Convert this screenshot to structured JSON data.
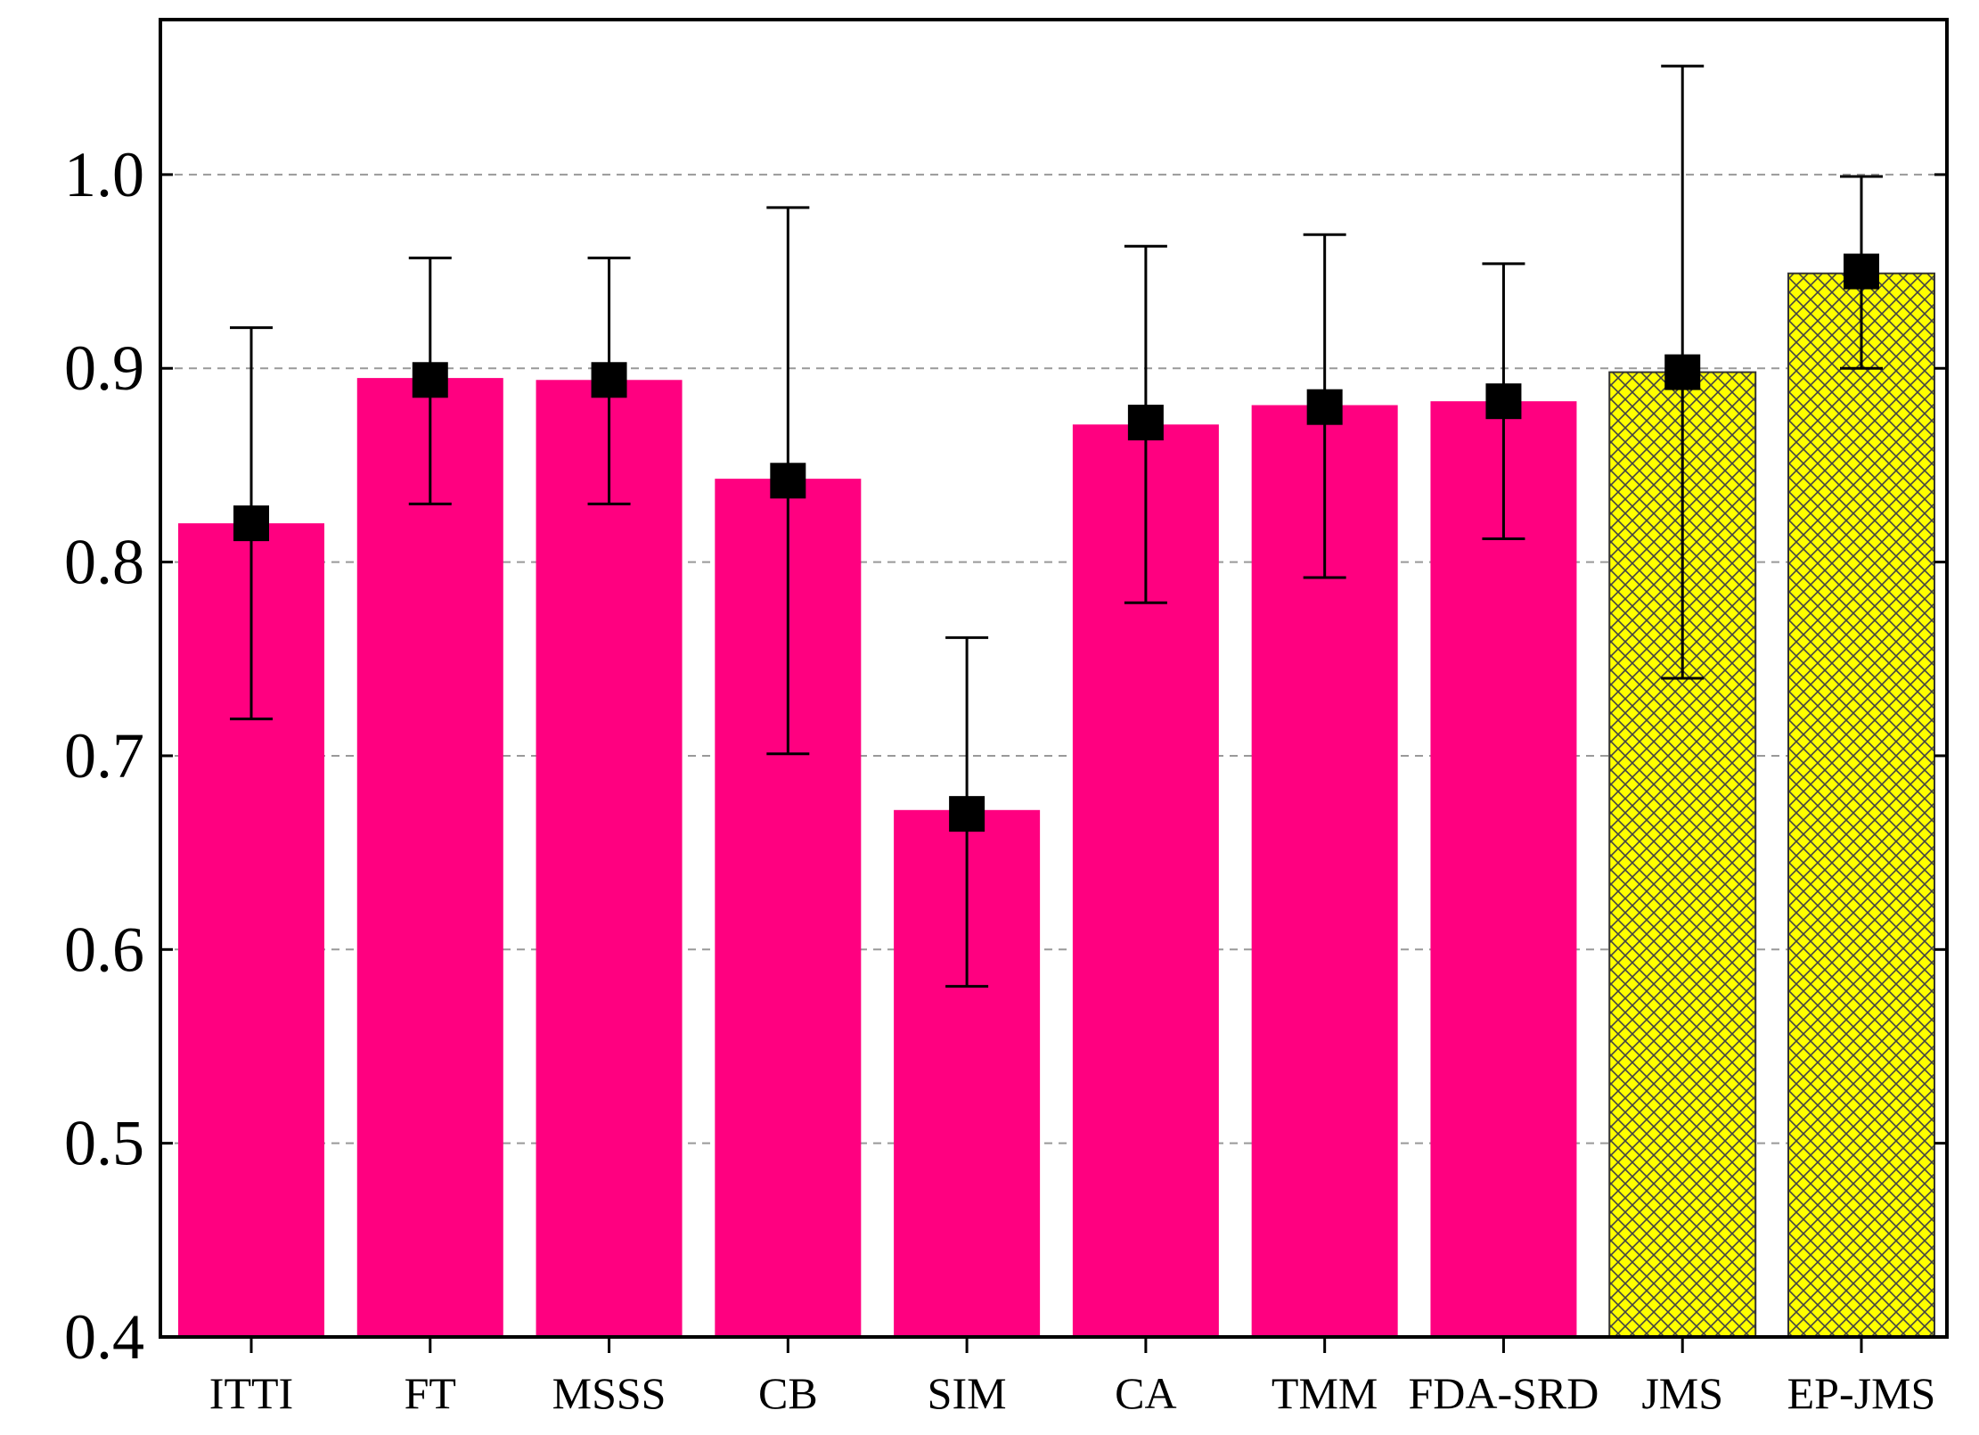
{
  "chart_data": {
    "type": "bar",
    "title": "",
    "xlabel": "",
    "ylabel": "",
    "ylim": [
      0.4,
      1.08
    ],
    "yticks": [
      0.4,
      0.5,
      0.6,
      0.7,
      0.8,
      0.9,
      1.0
    ],
    "ytick_labels": [
      "0.4",
      "0.5",
      "0.6",
      "0.7",
      "0.8",
      "0.9",
      "1.0"
    ],
    "grid": true,
    "categories": [
      "ITTI",
      "FT",
      "MSSS",
      "CB",
      "SIM",
      "CA",
      "TMM",
      "FDA-SRD",
      "JMS",
      "EP-JMS"
    ],
    "values": [
      0.82,
      0.895,
      0.894,
      0.843,
      0.672,
      0.871,
      0.881,
      0.883,
      0.898,
      0.949
    ],
    "markers": [
      0.82,
      0.894,
      0.894,
      0.842,
      0.67,
      0.872,
      0.88,
      0.883,
      0.898,
      0.95
    ],
    "error_low": [
      0.719,
      0.83,
      0.83,
      0.701,
      0.581,
      0.779,
      0.792,
      0.812,
      0.74,
      0.9
    ],
    "error_high": [
      0.921,
      0.957,
      0.957,
      0.983,
      0.761,
      0.963,
      0.969,
      0.954,
      1.056,
      0.999
    ],
    "highlighted": [
      false,
      false,
      false,
      false,
      false,
      false,
      false,
      false,
      true,
      true
    ],
    "colors": {
      "bar": "#ff0080",
      "highlight_fill": "#ffff00",
      "highlight_hatch": "#444444",
      "marker": "#000000",
      "grid": "#999999",
      "axis": "#000000"
    }
  }
}
